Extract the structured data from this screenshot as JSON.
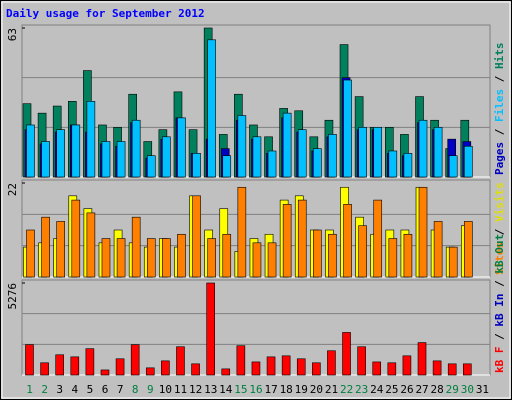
{
  "title": "Daily usage for September 2012",
  "legend_separator": " / ",
  "categories": [
    "1",
    "2",
    "3",
    "4",
    "5",
    "6",
    "7",
    "8",
    "9",
    "10",
    "11",
    "12",
    "13",
    "14",
    "15",
    "16",
    "17",
    "18",
    "19",
    "20",
    "21",
    "22",
    "23",
    "24",
    "25",
    "26",
    "27",
    "28",
    "29",
    "30",
    "31"
  ],
  "category_colors": [
    "#008040",
    "#008040",
    "#000000",
    "#000000",
    "#000000",
    "#000000",
    "#000000",
    "#008040",
    "#008040",
    "#000000",
    "#000000",
    "#000000",
    "#000000",
    "#000000",
    "#008040",
    "#008040",
    "#000000",
    "#000000",
    "#000000",
    "#000000",
    "#000000",
    "#008040",
    "#008040",
    "#000000",
    "#000000",
    "#000000",
    "#000000",
    "#000000",
    "#008040",
    "#008040",
    "#000000"
  ],
  "chart_data": [
    {
      "type": "bar",
      "ylim": [
        0,
        63
      ],
      "yticks": [
        63
      ],
      "gridlines": [
        21,
        42
      ],
      "series": [
        {
          "name": "Hits",
          "color": "#00805c",
          "values": [
            31,
            27,
            30,
            32,
            45,
            22,
            21,
            35,
            15,
            20,
            36,
            20,
            63,
            18,
            35,
            22,
            17,
            29,
            28,
            17,
            24,
            56,
            34,
            21,
            21,
            18,
            34,
            24,
            12,
            24,
            null
          ]
        },
        {
          "name": "Pages",
          "color": "#0000c0",
          "values": [
            20,
            14,
            19,
            22,
            19,
            14,
            13,
            23,
            8,
            16,
            25,
            10,
            16,
            12,
            24,
            16,
            10,
            25,
            19,
            11,
            17,
            42,
            20,
            20,
            10,
            9,
            23,
            20,
            16,
            15,
            null
          ]
        },
        {
          "name": "Files",
          "color": "#00c0ff",
          "values": [
            22,
            15,
            20,
            22,
            32,
            15,
            15,
            24,
            9,
            17,
            25,
            10,
            58,
            9,
            26,
            17,
            11,
            27,
            20,
            12,
            18,
            41,
            21,
            21,
            11,
            10,
            24,
            21,
            9,
            13,
            null
          ]
        }
      ],
      "legend": [
        "Pages",
        "Files",
        "Hits"
      ]
    },
    {
      "type": "bar",
      "ylim": [
        0,
        22
      ],
      "yticks": [
        22
      ],
      "gridlines": [
        7.33,
        14.67
      ],
      "series": [
        {
          "name": "Visits",
          "color": "#ffff00",
          "values": [
            7,
            8,
            9,
            19,
            16,
            8,
            11,
            8,
            7,
            9,
            7,
            19,
            11,
            16,
            6,
            9,
            10,
            18,
            19,
            11,
            11,
            21,
            14,
            10,
            11,
            11,
            21,
            11,
            7,
            12,
            null
          ]
        },
        {
          "name": "Sites",
          "color": "#ff8000",
          "values": [
            11,
            14,
            13,
            18,
            15,
            9,
            9,
            14,
            9,
            9,
            10,
            19,
            9,
            10,
            21,
            8,
            8,
            17,
            18,
            11,
            10,
            17,
            12,
            18,
            9,
            10,
            21,
            13,
            7,
            13,
            null
          ]
        }
      ],
      "legend": [
        "Sites",
        "Visits"
      ]
    },
    {
      "type": "bar",
      "ylim": [
        0,
        5276
      ],
      "yticks": [
        5276
      ],
      "gridlines": [
        1759,
        3517
      ],
      "series": [
        {
          "name": "kB F",
          "color": "#ff0000",
          "values": [
            1740,
            700,
            1160,
            1040,
            1510,
            290,
            930,
            1740,
            410,
            810,
            1620,
            640,
            5276,
            350,
            1680,
            750,
            1040,
            1100,
            930,
            700,
            1390,
            2440,
            1620,
            750,
            700,
            1100,
            1860,
            810,
            640,
            640,
            null
          ]
        }
      ],
      "legend": [
        {
          "text": "kB F",
          "color": "#ff0000"
        },
        {
          "text": "kB In",
          "color": "#0000c0"
        },
        {
          "text": "kB Out",
          "color": "#008040"
        }
      ]
    }
  ]
}
